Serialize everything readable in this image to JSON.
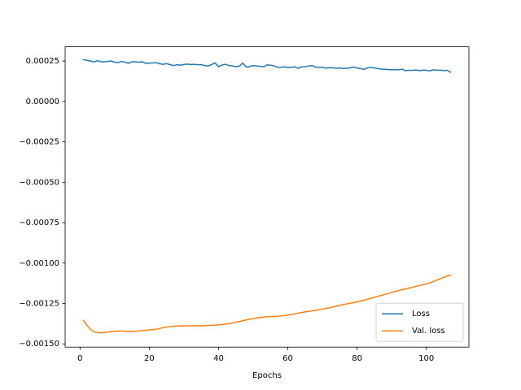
{
  "chart_data": {
    "type": "line",
    "xlabel": "Epochs",
    "x": [
      1,
      2,
      3,
      4,
      5,
      6,
      7,
      8,
      9,
      10,
      11,
      12,
      13,
      14,
      15,
      16,
      17,
      18,
      19,
      20,
      21,
      22,
      23,
      24,
      25,
      26,
      27,
      28,
      29,
      30,
      31,
      32,
      33,
      34,
      35,
      36,
      37,
      38,
      39,
      40,
      41,
      42,
      43,
      44,
      45,
      46,
      47,
      48,
      49,
      50,
      51,
      52,
      53,
      54,
      55,
      56,
      57,
      58,
      59,
      60,
      61,
      62,
      63,
      64,
      65,
      66,
      67,
      68,
      69,
      70,
      71,
      72,
      73,
      74,
      75,
      76,
      77,
      78,
      79,
      80,
      81,
      82,
      83,
      84,
      85,
      86,
      87,
      88,
      89,
      90,
      91,
      92,
      93,
      94,
      95,
      96,
      97,
      98,
      99,
      100,
      101,
      102,
      103,
      104,
      105,
      106,
      107
    ],
    "series": [
      {
        "name": "Loss",
        "color": "#1f77b4",
        "values": [
          0.000258,
          0.000255,
          0.00025,
          0.000245,
          0.000252,
          0.000246,
          0.000244,
          0.000248,
          0.00025,
          0.000243,
          0.00024,
          0.000247,
          0.000243,
          0.000236,
          0.000246,
          0.000244,
          0.000243,
          0.000245,
          0.000236,
          0.000237,
          0.000238,
          0.00024,
          0.000233,
          0.00023,
          0.000234,
          0.000228,
          0.000222,
          0.000227,
          0.000224,
          0.000229,
          0.000231,
          0.000228,
          0.00023,
          0.000227,
          0.000228,
          0.000222,
          0.000219,
          0.000228,
          0.000238,
          0.000215,
          0.000225,
          0.00023,
          0.000222,
          0.00022,
          0.000215,
          0.000218,
          0.000237,
          0.000212,
          0.000216,
          0.000222,
          0.00022,
          0.000217,
          0.000214,
          0.000226,
          0.000224,
          0.000221,
          0.000211,
          0.00021,
          0.000215,
          0.000209,
          0.000211,
          0.000214,
          0.000205,
          0.000214,
          0.000215,
          0.000219,
          0.000222,
          0.000212,
          0.000211,
          0.000212,
          0.000206,
          0.000209,
          0.000208,
          0.000205,
          0.000207,
          0.000204,
          0.000205,
          0.000208,
          0.000212,
          0.000207,
          0.000203,
          0.000198,
          0.000208,
          0.00021,
          0.000207,
          0.000203,
          0.0002,
          0.000199,
          0.000198,
          0.000196,
          0.000197,
          0.000195,
          0.0002,
          0.00019,
          0.000193,
          0.000192,
          0.000195,
          0.00019,
          0.000194,
          0.000193,
          0.000189,
          0.000196,
          0.000193,
          0.000194,
          0.00019,
          0.000193,
          0.00018
        ]
      },
      {
        "name": "Val. loss",
        "color": "#ff7f0e",
        "values": [
          -0.001355,
          -0.001385,
          -0.00141,
          -0.001425,
          -0.00143,
          -0.001432,
          -0.00143,
          -0.001427,
          -0.001424,
          -0.001422,
          -0.001421,
          -0.001421,
          -0.001422,
          -0.001423,
          -0.001423,
          -0.001422,
          -0.00142,
          -0.001418,
          -0.001416,
          -0.001414,
          -0.001412,
          -0.00141,
          -0.001405,
          -0.0014,
          -0.001396,
          -0.001393,
          -0.001391,
          -0.00139,
          -0.001389,
          -0.001389,
          -0.001388,
          -0.001388,
          -0.001388,
          -0.001388,
          -0.001388,
          -0.001387,
          -0.001386,
          -0.001385,
          -0.001384,
          -0.001382,
          -0.00138,
          -0.001378,
          -0.001375,
          -0.001371,
          -0.001366,
          -0.001362,
          -0.001357,
          -0.001352,
          -0.001348,
          -0.001344,
          -0.00134,
          -0.001337,
          -0.001334,
          -0.001332,
          -0.001331,
          -0.00133,
          -0.001329,
          -0.001327,
          -0.001325,
          -0.001322,
          -0.001318,
          -0.001314,
          -0.00131,
          -0.001306,
          -0.001302,
          -0.001299,
          -0.001296,
          -0.001293,
          -0.001289,
          -0.001285,
          -0.001281,
          -0.001277,
          -0.001272,
          -0.001267,
          -0.001262,
          -0.001257,
          -0.001253,
          -0.001249,
          -0.001245,
          -0.00124,
          -0.001235,
          -0.00123,
          -0.001224,
          -0.001218,
          -0.001212,
          -0.001206,
          -0.0012,
          -0.001194,
          -0.001188,
          -0.001182,
          -0.001176,
          -0.00117,
          -0.001165,
          -0.00116,
          -0.001155,
          -0.00115,
          -0.001144,
          -0.001139,
          -0.001134,
          -0.001129,
          -0.001123,
          -0.001115,
          -0.001106,
          -0.001097,
          -0.001089,
          -0.001081,
          -0.001075
        ]
      }
    ],
    "xlim": [
      -4.3,
      112.3
    ],
    "xticks": [
      0,
      20,
      40,
      60,
      80,
      100
    ],
    "ylim": [
      -0.00152,
      0.000338
    ],
    "yticks": [
      {
        "value": 0.00025,
        "label": "0.00025"
      },
      {
        "value": 0,
        "label": "0.00000"
      },
      {
        "value": -0.00025,
        "label": "−0.00025"
      },
      {
        "value": -0.0005,
        "label": "−0.00050"
      },
      {
        "value": -0.00075,
        "label": "−0.00075"
      },
      {
        "value": -0.001,
        "label": "−0.00100"
      },
      {
        "value": -0.00125,
        "label": "−0.00125"
      },
      {
        "value": -0.0015,
        "label": "−0.00150"
      }
    ],
    "legend": "lower right",
    "grid": false
  }
}
